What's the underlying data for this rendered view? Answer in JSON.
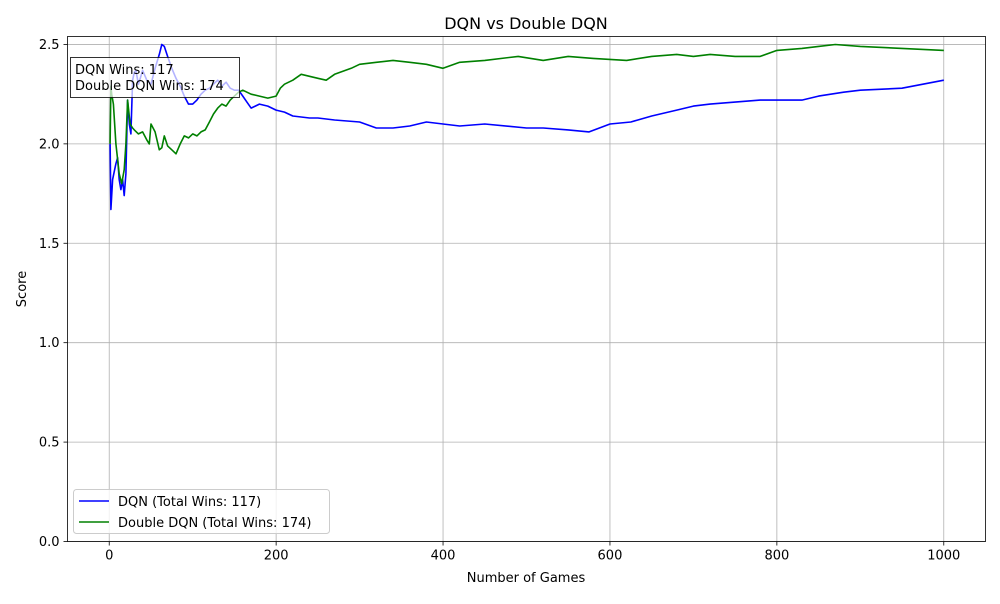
{
  "chart_data": {
    "type": "line",
    "title": "DQN vs Double DQN",
    "xlabel": "Number of Games",
    "ylabel": "Score",
    "xlim": [
      -50,
      1050
    ],
    "ylim": [
      0.0,
      2.54
    ],
    "xticks": [
      0,
      200,
      400,
      600,
      800,
      1000
    ],
    "xtick_labels": [
      "0",
      "200",
      "400",
      "600",
      "800",
      "1000"
    ],
    "yticks": [
      0.0,
      0.5,
      1.0,
      1.5,
      2.0,
      2.5
    ],
    "ytick_labels": [
      "0.0",
      "0.5",
      "1.0",
      "1.5",
      "2.0",
      "2.5"
    ],
    "grid": true,
    "legend_position": "lower-left",
    "annotation": {
      "position": "upper-left",
      "lines": [
        "DQN Wins: 117",
        "Double DQN Wins: 174"
      ]
    },
    "series": [
      {
        "name": "DQN (Total Wins: 117)",
        "color": "#0000ff",
        "x": [
          1,
          2,
          4,
          8,
          10,
          12,
          14,
          16,
          18,
          20,
          22,
          24,
          26,
          28,
          30,
          32,
          35,
          38,
          40,
          45,
          50,
          55,
          60,
          63,
          66,
          70,
          75,
          80,
          85,
          90,
          95,
          100,
          105,
          110,
          115,
          120,
          125,
          130,
          135,
          140,
          145,
          150,
          155,
          160,
          165,
          170,
          175,
          180,
          190,
          200,
          210,
          220,
          240,
          250,
          270,
          300,
          320,
          340,
          360,
          380,
          400,
          420,
          450,
          500,
          520,
          550,
          575,
          600,
          625,
          650,
          680,
          700,
          720,
          750,
          780,
          800,
          830,
          850,
          880,
          900,
          950,
          975,
          1000
        ],
        "values": [
          2.0,
          1.67,
          1.82,
          1.9,
          1.93,
          1.82,
          1.77,
          1.82,
          1.74,
          1.85,
          2.22,
          2.1,
          2.05,
          2.32,
          2.36,
          2.37,
          2.3,
          2.34,
          2.37,
          2.32,
          2.3,
          2.38,
          2.45,
          2.5,
          2.49,
          2.44,
          2.38,
          2.33,
          2.29,
          2.24,
          2.2,
          2.2,
          2.22,
          2.25,
          2.27,
          2.28,
          2.3,
          2.32,
          2.29,
          2.31,
          2.28,
          2.27,
          2.27,
          2.24,
          2.21,
          2.18,
          2.19,
          2.2,
          2.19,
          2.17,
          2.16,
          2.14,
          2.13,
          2.13,
          2.12,
          2.11,
          2.08,
          2.08,
          2.09,
          2.11,
          2.1,
          2.09,
          2.1,
          2.08,
          2.08,
          2.07,
          2.06,
          2.1,
          2.11,
          2.14,
          2.17,
          2.19,
          2.2,
          2.21,
          2.22,
          2.22,
          2.22,
          2.24,
          2.26,
          2.27,
          2.28,
          2.3,
          2.32
        ]
      },
      {
        "name": "Double DQN (Total Wins: 174)",
        "color": "#008000",
        "x": [
          1,
          2,
          3,
          5,
          8,
          12,
          15,
          18,
          20,
          22,
          25,
          28,
          30,
          35,
          40,
          45,
          48,
          50,
          55,
          60,
          63,
          66,
          70,
          75,
          80,
          85,
          90,
          95,
          100,
          105,
          110,
          115,
          120,
          125,
          130,
          135,
          140,
          145,
          150,
          155,
          160,
          170,
          180,
          190,
          200,
          205,
          210,
          220,
          230,
          240,
          250,
          260,
          270,
          290,
          300,
          320,
          340,
          360,
          380,
          400,
          420,
          450,
          490,
          520,
          550,
          580,
          620,
          650,
          680,
          700,
          720,
          750,
          780,
          800,
          830,
          850,
          870,
          900,
          950,
          1000
        ],
        "values": [
          2.0,
          2.29,
          2.25,
          2.2,
          2.0,
          1.85,
          1.8,
          1.87,
          2.0,
          2.22,
          2.1,
          2.08,
          2.07,
          2.05,
          2.06,
          2.02,
          2.0,
          2.1,
          2.06,
          1.97,
          1.98,
          2.04,
          1.99,
          1.97,
          1.95,
          2.0,
          2.04,
          2.03,
          2.05,
          2.04,
          2.06,
          2.07,
          2.11,
          2.15,
          2.18,
          2.2,
          2.19,
          2.22,
          2.24,
          2.26,
          2.27,
          2.25,
          2.24,
          2.23,
          2.24,
          2.28,
          2.3,
          2.32,
          2.35,
          2.34,
          2.33,
          2.32,
          2.35,
          2.38,
          2.4,
          2.41,
          2.42,
          2.41,
          2.4,
          2.38,
          2.41,
          2.42,
          2.44,
          2.42,
          2.44,
          2.43,
          2.42,
          2.44,
          2.45,
          2.44,
          2.45,
          2.44,
          2.44,
          2.47,
          2.48,
          2.49,
          2.5,
          2.49,
          2.48,
          2.47
        ]
      }
    ]
  }
}
